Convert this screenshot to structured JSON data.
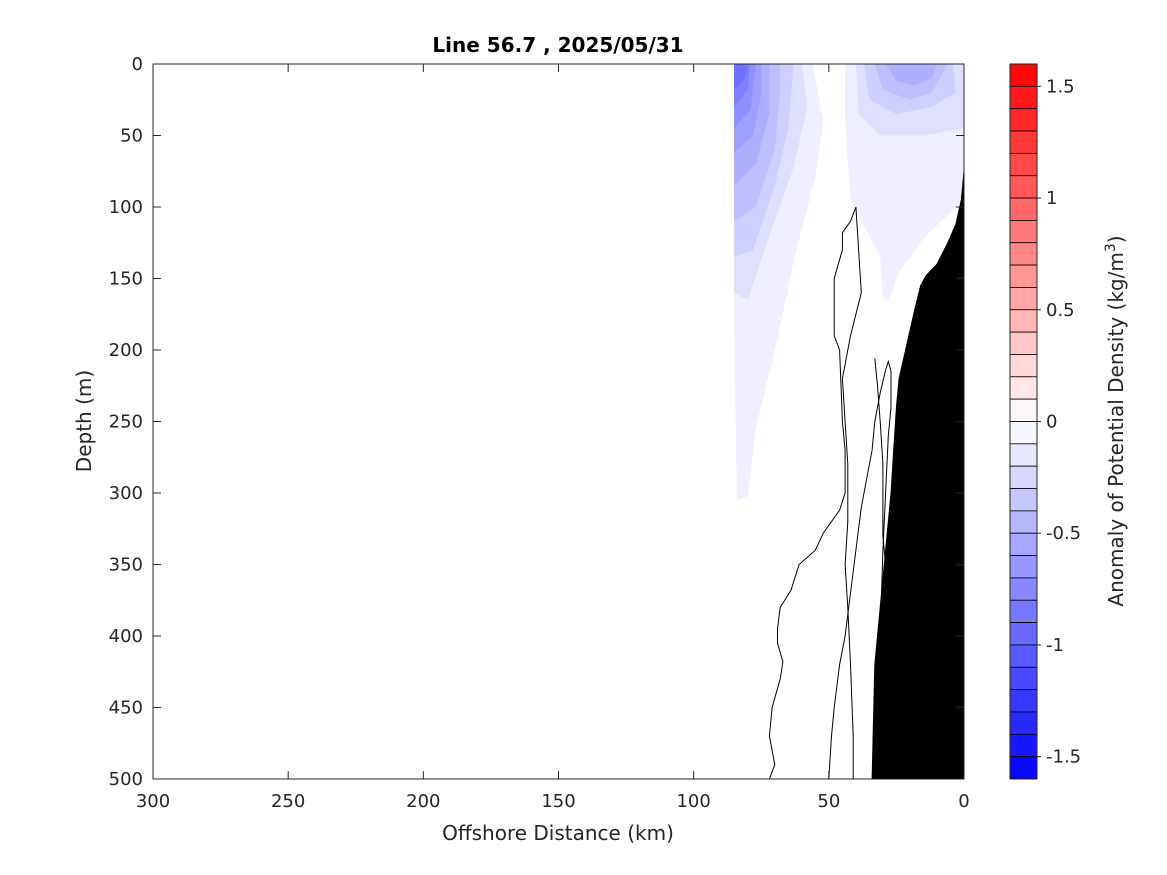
{
  "chart_data": {
    "type": "heatmap",
    "title": "Line 56.7 , 2025/05/31",
    "xlabel": "Offshore Distance (km)",
    "ylabel": "Depth (m)",
    "xlim": [
      300,
      0
    ],
    "ylim": [
      500,
      0
    ],
    "x_ticks": [
      "300",
      "250",
      "200",
      "150",
      "100",
      "50",
      "0"
    ],
    "y_ticks": [
      "0",
      "50",
      "100",
      "150",
      "200",
      "250",
      "300",
      "350",
      "400",
      "450",
      "500"
    ],
    "x_tick_values": [
      300,
      250,
      200,
      150,
      100,
      50,
      0
    ],
    "y_tick_values": [
      0,
      50,
      100,
      150,
      200,
      250,
      300,
      350,
      400,
      450,
      500
    ],
    "colorbar": {
      "label_main": "Anomaly of Potential Density (kg/m",
      "label_sup": "3",
      "label_end": ")",
      "range": [
        -1.6,
        1.6
      ],
      "levels": 32,
      "ticks": [
        "1.5",
        "1",
        "0.5",
        "0",
        "-0.5",
        "-1",
        "-1.5"
      ],
      "tick_values": [
        1.5,
        1.0,
        0.5,
        0.0,
        -0.5,
        -1.0,
        -1.5
      ],
      "low_color": "#0000ff",
      "mid_color": "#ffffff",
      "high_color": "#ff0000"
    },
    "data_extent_km": [
      0,
      85
    ],
    "anomaly_regions": [
      {
        "value": -0.1,
        "points": [
          [
            85,
            0
          ],
          [
            85,
            185
          ],
          [
            84,
            305
          ],
          [
            80,
            303
          ],
          [
            77,
            255
          ],
          [
            70,
            200
          ],
          [
            62,
            130
          ],
          [
            55,
            80
          ],
          [
            52,
            40
          ],
          [
            56,
            0
          ]
        ]
      },
      {
        "value": -0.1,
        "points": [
          [
            44,
            0
          ],
          [
            44,
            40
          ],
          [
            42,
            95
          ],
          [
            31,
            135
          ],
          [
            30,
            163
          ],
          [
            28,
            166
          ],
          [
            24,
            145
          ],
          [
            14,
            120
          ],
          [
            0,
            95
          ],
          [
            0,
            0
          ]
        ]
      },
      {
        "value": -0.2,
        "points": [
          [
            85,
            0
          ],
          [
            85,
            160
          ],
          [
            80,
            165
          ],
          [
            72,
            120
          ],
          [
            63,
            72
          ],
          [
            58,
            30
          ],
          [
            60,
            0
          ]
        ]
      },
      {
        "value": -0.2,
        "points": [
          [
            40,
            0
          ],
          [
            39,
            35
          ],
          [
            31,
            50
          ],
          [
            15,
            50
          ],
          [
            0,
            45
          ],
          [
            0,
            0
          ]
        ]
      },
      {
        "value": -0.3,
        "points": [
          [
            85,
            0
          ],
          [
            85,
            135
          ],
          [
            78,
            130
          ],
          [
            70,
            85
          ],
          [
            65,
            45
          ],
          [
            63,
            0
          ]
        ]
      },
      {
        "value": -0.3,
        "points": [
          [
            37,
            0
          ],
          [
            35,
            25
          ],
          [
            25,
            35
          ],
          [
            12,
            30
          ],
          [
            3,
            20
          ],
          [
            4,
            0
          ]
        ]
      },
      {
        "value": -0.4,
        "points": [
          [
            85,
            0
          ],
          [
            85,
            110
          ],
          [
            77,
            100
          ],
          [
            70,
            60
          ],
          [
            68,
            20
          ],
          [
            68,
            0
          ]
        ]
      },
      {
        "value": -0.4,
        "points": [
          [
            33,
            0
          ],
          [
            30,
            18
          ],
          [
            20,
            25
          ],
          [
            12,
            20
          ],
          [
            6,
            0
          ]
        ]
      },
      {
        "value": -0.5,
        "points": [
          [
            85,
            0
          ],
          [
            85,
            85
          ],
          [
            77,
            70
          ],
          [
            72,
            35
          ],
          [
            72,
            0
          ]
        ]
      },
      {
        "value": -0.5,
        "points": [
          [
            29,
            0
          ],
          [
            25,
            12
          ],
          [
            18,
            15
          ],
          [
            12,
            10
          ],
          [
            10,
            0
          ]
        ]
      },
      {
        "value": -0.6,
        "points": [
          [
            85,
            0
          ],
          [
            85,
            62
          ],
          [
            78,
            50
          ],
          [
            75,
            20
          ],
          [
            75,
            0
          ]
        ]
      },
      {
        "value": -0.7,
        "points": [
          [
            85,
            0
          ],
          [
            85,
            45
          ],
          [
            79,
            32
          ],
          [
            77,
            0
          ]
        ]
      },
      {
        "value": -0.8,
        "points": [
          [
            85,
            0
          ],
          [
            85,
            30
          ],
          [
            80,
            18
          ],
          [
            79,
            0
          ]
        ]
      },
      {
        "value": -0.9,
        "points": [
          [
            85,
            0
          ],
          [
            85,
            18
          ],
          [
            81,
            10
          ],
          [
            80,
            0
          ]
        ]
      }
    ],
    "contour_lines": [
      [
        [
          72,
          500
        ],
        [
          70,
          490
        ],
        [
          72,
          470
        ],
        [
          71,
          450
        ],
        [
          68,
          430
        ],
        [
          67,
          418
        ],
        [
          69,
          405
        ],
        [
          69,
          395
        ],
        [
          68,
          380
        ],
        [
          64,
          368
        ],
        [
          61,
          350
        ],
        [
          55,
          340
        ],
        [
          52,
          328
        ],
        [
          46,
          312
        ],
        [
          44,
          300
        ],
        [
          44,
          270
        ],
        [
          45,
          250
        ],
        [
          46,
          200
        ],
        [
          48,
          190
        ],
        [
          48,
          150
        ],
        [
          45,
          130
        ],
        [
          45,
          118
        ],
        [
          42,
          110
        ],
        [
          40,
          100
        ],
        [
          39,
          130
        ],
        [
          38,
          160
        ],
        [
          42,
          190
        ],
        [
          45,
          220
        ],
        [
          43,
          280
        ],
        [
          43,
          320
        ],
        [
          44,
          350
        ],
        [
          43,
          380
        ],
        [
          42,
          420
        ],
        [
          41,
          470
        ],
        [
          41,
          500
        ]
      ],
      [
        [
          50,
          500
        ],
        [
          49,
          470
        ],
        [
          48,
          450
        ],
        [
          46,
          420
        ],
        [
          44,
          400
        ],
        [
          42,
          370
        ],
        [
          40,
          340
        ],
        [
          38,
          310
        ],
        [
          36,
          290
        ],
        [
          34,
          270
        ],
        [
          33,
          250
        ],
        [
          31,
          230
        ],
        [
          29,
          214
        ],
        [
          28,
          208
        ],
        [
          27,
          215
        ],
        [
          27,
          240
        ],
        [
          28,
          260
        ],
        [
          29,
          300
        ],
        [
          30,
          340
        ],
        [
          31,
          400
        ],
        [
          32,
          450
        ],
        [
          33,
          500
        ]
      ],
      [
        [
          24,
          500
        ],
        [
          26,
          470
        ],
        [
          27,
          430
        ],
        [
          28,
          400
        ],
        [
          29,
          370
        ],
        [
          29,
          350
        ],
        [
          30,
          330
        ],
        [
          30,
          300
        ],
        [
          30,
          280
        ],
        [
          31,
          250
        ],
        [
          32,
          225
        ],
        [
          33,
          206
        ]
      ]
    ],
    "bathymetry": [
      [
        34,
        500
      ],
      [
        33,
        420
      ],
      [
        31,
        380
      ],
      [
        30,
        360
      ],
      [
        29,
        340
      ],
      [
        27,
        300
      ],
      [
        26,
        270
      ],
      [
        25,
        240
      ],
      [
        24,
        220
      ],
      [
        21,
        195
      ],
      [
        18,
        170
      ],
      [
        16,
        155
      ],
      [
        14,
        148
      ],
      [
        10,
        140
      ],
      [
        6,
        125
      ],
      [
        3,
        112
      ],
      [
        1,
        95
      ],
      [
        0,
        75
      ],
      [
        0,
        35
      ],
      [
        0,
        500
      ]
    ]
  }
}
